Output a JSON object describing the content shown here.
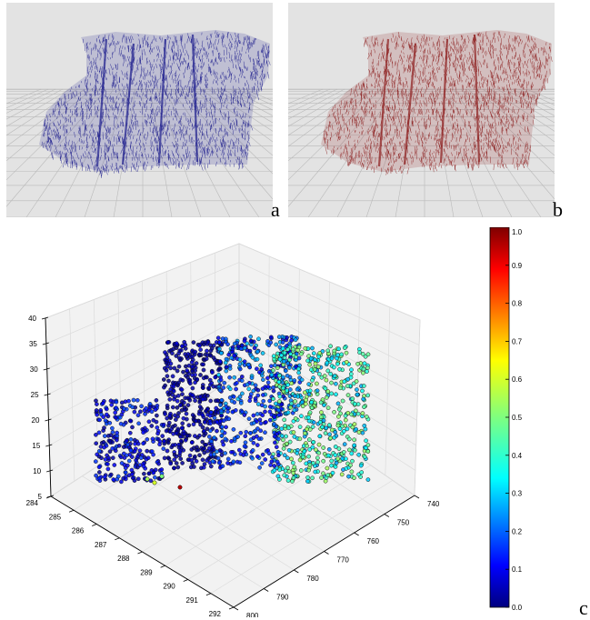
{
  "panels": {
    "a": {
      "letter": "a",
      "cloud_color": "#1a1a8c",
      "background": "#e3e3e3"
    },
    "b": {
      "letter": "b",
      "cloud_color": "#8b1a1a",
      "background": "#e3e3e3"
    },
    "c": {
      "letter": "c"
    }
  },
  "chart_data": {
    "type": "scatter",
    "projection": "3d",
    "x_axis": {
      "range": [
        740,
        800
      ],
      "ticks": [
        740,
        750,
        760,
        770,
        780,
        790,
        800
      ]
    },
    "y_axis": {
      "range": [
        284,
        292
      ],
      "ticks": [
        284,
        285,
        286,
        287,
        288,
        289,
        290,
        291,
        292
      ]
    },
    "z_axis": {
      "range": [
        5,
        40
      ],
      "ticks": [
        5,
        10,
        15,
        20,
        25,
        30,
        35,
        40
      ]
    },
    "colorbar": {
      "range": [
        0.0,
        1.0
      ],
      "ticks": [
        "0.0",
        "0.1",
        "0.2",
        "0.3",
        "0.4",
        "0.5",
        "0.6",
        "0.7",
        "0.8",
        "0.9",
        "1.0"
      ],
      "colormap": "jet"
    },
    "grid": true
  }
}
